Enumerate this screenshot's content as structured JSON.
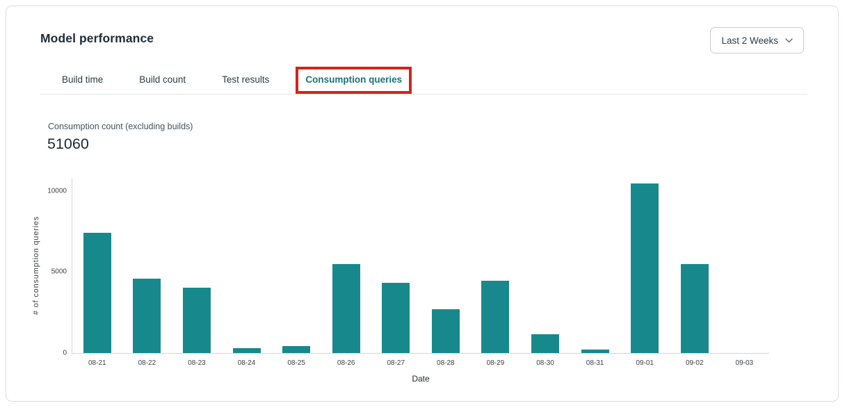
{
  "header": {
    "title": "Model performance",
    "time_range_selector": {
      "value": "Last 2 Weeks",
      "icon": "chevron-down"
    }
  },
  "tabs": [
    {
      "id": "build-time",
      "label": "Build time",
      "active": false,
      "annotated": false
    },
    {
      "id": "build-count",
      "label": "Build count",
      "active": false,
      "annotated": false
    },
    {
      "id": "test-results",
      "label": "Test results",
      "active": false,
      "annotated": false
    },
    {
      "id": "consumption-queries",
      "label": "Consumption queries",
      "active": true,
      "annotated": true
    }
  ],
  "metric": {
    "label": "Consumption count (excluding builds)",
    "value": "51060"
  },
  "chart_data": {
    "type": "bar",
    "title": "",
    "xlabel": "Date",
    "ylabel": "# of consumption queries",
    "categories": [
      "08-21",
      "08-22",
      "08-23",
      "08-24",
      "08-25",
      "08-26",
      "08-27",
      "08-28",
      "08-29",
      "08-30",
      "08-31",
      "09-01",
      "09-02",
      "09-03"
    ],
    "values": [
      7400,
      4600,
      4050,
      300,
      430,
      5480,
      4350,
      2700,
      4450,
      1150,
      200,
      10450,
      5500,
      0
    ],
    "yticks": [
      0,
      5000,
      10000
    ],
    "ylim": [
      0,
      10850
    ],
    "grid": false,
    "legend": false,
    "bar_color": "#17898d"
  },
  "colors": {
    "bar_teal": "#17898d",
    "active_tab_teal": "#19737b",
    "annotation_red": "#d1251b",
    "card_border": "#d9dee3"
  }
}
